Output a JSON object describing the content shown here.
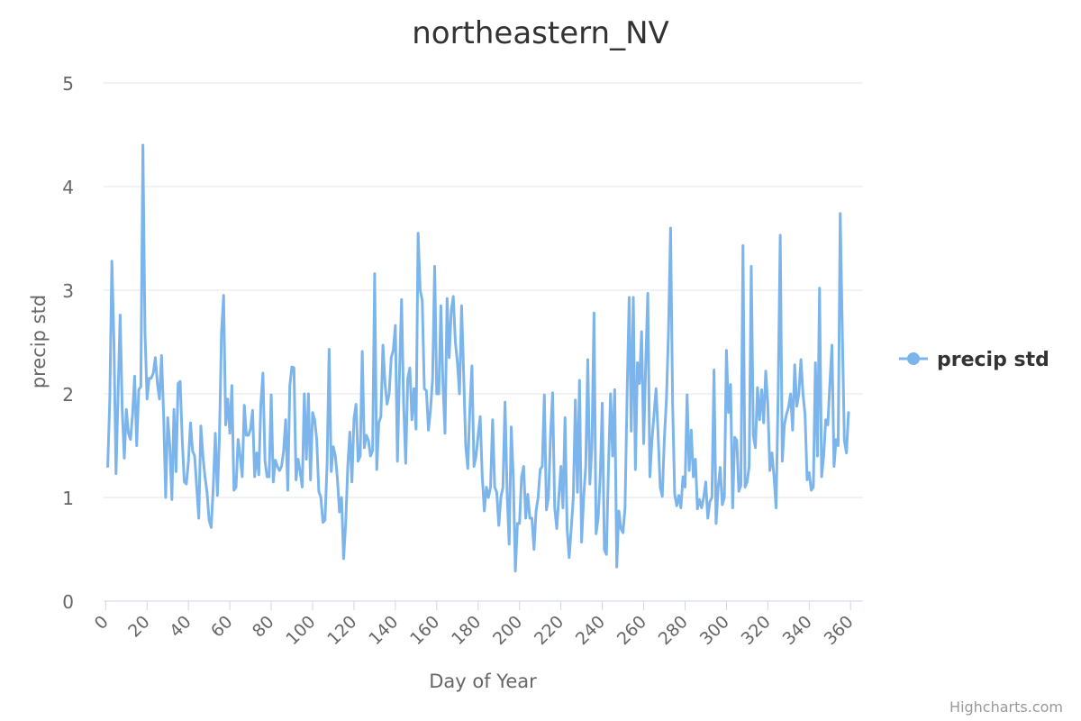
{
  "chart_data": {
    "type": "line",
    "title": "northeastern_NV",
    "xlabel": "Day of Year",
    "ylabel": "precip std",
    "xlim": [
      -1,
      366
    ],
    "ylim": [
      0,
      5
    ],
    "xticks": [
      0,
      20,
      40,
      60,
      80,
      100,
      120,
      140,
      160,
      180,
      200,
      220,
      240,
      260,
      280,
      300,
      320,
      340,
      360
    ],
    "yticks": [
      0,
      1,
      2,
      3,
      4,
      5
    ],
    "grid": "horizontal",
    "legend_position": "right",
    "series": [
      {
        "name": "precip std",
        "color": "#7cb5ec",
        "values": [
          1.3,
          1.95,
          3.28,
          2.5,
          1.23,
          2.0,
          2.76,
          1.85,
          1.38,
          1.85,
          1.62,
          1.56,
          1.8,
          2.17,
          1.5,
          2.04,
          2.07,
          4.4,
          2.6,
          1.95,
          2.15,
          2.15,
          2.2,
          2.35,
          2.1,
          1.95,
          2.37,
          1.8,
          1.0,
          1.77,
          1.5,
          0.98,
          1.85,
          1.25,
          2.1,
          2.12,
          1.56,
          1.15,
          1.13,
          1.35,
          1.72,
          1.45,
          1.4,
          1.1,
          0.8,
          1.69,
          1.4,
          1.2,
          1.05,
          0.78,
          0.71,
          1.1,
          1.62,
          1.02,
          1.6,
          2.6,
          2.95,
          1.7,
          1.95,
          1.62,
          2.08,
          1.07,
          1.1,
          1.56,
          1.4,
          1.2,
          1.89,
          1.6,
          1.6,
          1.66,
          1.84,
          1.2,
          1.43,
          1.22,
          1.9,
          2.2,
          1.35,
          1.2,
          1.2,
          1.99,
          1.15,
          1.36,
          1.3,
          1.26,
          1.3,
          1.45,
          1.75,
          1.07,
          2.08,
          2.26,
          2.25,
          1.17,
          1.37,
          1.25,
          1.1,
          2.0,
          1.37,
          2.0,
          1.17,
          1.82,
          1.75,
          1.56,
          1.06,
          1.0,
          0.76,
          0.78,
          1.32,
          2.43,
          1.25,
          1.49,
          1.4,
          1.18,
          0.86,
          1.0,
          0.41,
          0.75,
          1.3,
          1.63,
          1.15,
          1.76,
          1.9,
          1.35,
          1.4,
          2.41,
          1.48,
          1.6,
          1.55,
          1.4,
          1.45,
          3.16,
          1.27,
          1.72,
          1.78,
          2.47,
          2.1,
          1.9,
          2.0,
          2.35,
          2.42,
          2.66,
          1.35,
          2.2,
          2.91,
          1.9,
          1.33,
          2.15,
          2.25,
          1.75,
          2.05,
          1.66,
          3.55,
          3.0,
          2.9,
          2.05,
          2.03,
          1.65,
          1.85,
          2.15,
          3.23,
          2.0,
          2.0,
          2.85,
          2.1,
          1.62,
          2.92,
          2.35,
          2.8,
          2.94,
          2.5,
          2.3,
          2.0,
          2.85,
          2.2,
          1.5,
          1.28,
          1.85,
          2.27,
          1.3,
          1.4,
          1.6,
          1.78,
          1.2,
          0.87,
          1.1,
          1.0,
          1.1,
          1.75,
          1.1,
          1.05,
          0.73,
          1.0,
          1.1,
          1.92,
          1.05,
          0.55,
          1.68,
          1.2,
          0.29,
          0.75,
          0.75,
          1.2,
          1.3,
          0.8,
          1.03,
          0.8,
          0.8,
          0.5,
          0.87,
          1.0,
          1.27,
          1.3,
          1.99,
          0.88,
          1.0,
          1.6,
          2.01,
          0.9,
          0.7,
          1.0,
          1.3,
          0.9,
          1.77,
          0.7,
          0.42,
          0.7,
          1.0,
          1.94,
          1.05,
          2.13,
          0.57,
          1.0,
          1.3,
          2.33,
          1.13,
          1.5,
          2.78,
          0.65,
          0.8,
          1.2,
          1.91,
          0.5,
          0.45,
          1.3,
          2.0,
          1.4,
          2.04,
          0.33,
          0.87,
          0.7,
          0.66,
          0.9,
          2.0,
          2.93,
          1.64,
          2.93,
          1.27,
          2.3,
          2.1,
          2.6,
          1.52,
          2.3,
          2.97,
          1.2,
          1.55,
          1.8,
          2.05,
          1.6,
          1.1,
          1.01,
          1.57,
          1.94,
          2.6,
          3.6,
          1.9,
          1.03,
          0.92,
          1.02,
          0.9,
          1.2,
          1.1,
          1.99,
          1.26,
          1.65,
          1.2,
          1.37,
          0.89,
          0.98,
          0.9,
          1.0,
          1.15,
          0.8,
          0.96,
          1.0,
          2.23,
          0.75,
          1.1,
          1.29,
          0.93,
          1.0,
          2.42,
          1.82,
          2.09,
          0.9,
          1.58,
          1.55,
          1.06,
          1.12,
          3.43,
          1.1,
          1.15,
          1.3,
          3.23,
          1.6,
          1.48,
          2.06,
          1.75,
          2.04,
          1.72,
          2.22,
          1.9,
          1.26,
          1.43,
          1.2,
          0.9,
          2.0,
          3.53,
          1.35,
          1.7,
          1.8,
          1.87,
          2.0,
          1.65,
          2.28,
          1.88,
          2.0,
          2.33,
          2.0,
          1.8,
          1.17,
          1.24,
          1.07,
          1.1,
          2.3,
          1.4,
          3.02,
          1.2,
          1.4,
          1.75,
          1.7,
          2.1,
          2.47,
          1.3,
          1.56,
          1.5,
          3.74,
          2.6,
          1.55,
          1.43,
          1.82
        ]
      }
    ]
  },
  "credits": "Highcharts.com"
}
